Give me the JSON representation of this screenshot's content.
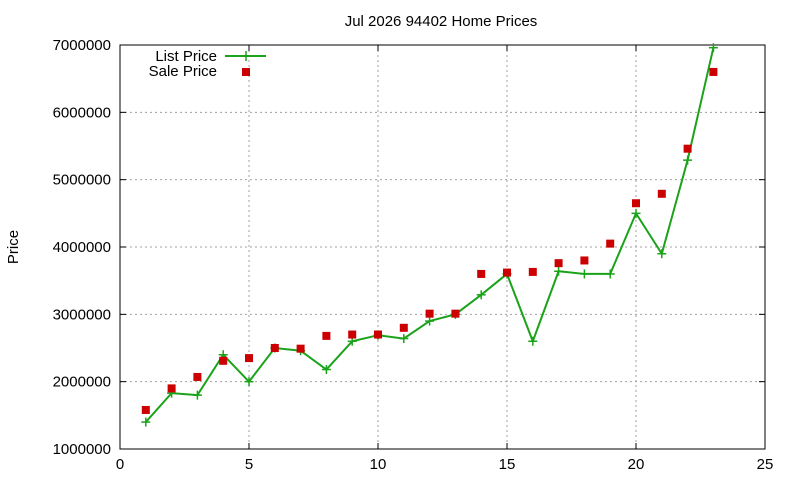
{
  "chart_data": {
    "type": "line",
    "title": "Jul 2026 94402 Home Prices",
    "xlabel": "",
    "ylabel": "Price",
    "xlim": [
      0,
      25
    ],
    "ylim": [
      1000000,
      7000000
    ],
    "xticks": [
      "0",
      "5",
      "10",
      "15",
      "20",
      "25"
    ],
    "yticks": [
      "1000000",
      "2000000",
      "3000000",
      "4000000",
      "5000000",
      "6000000",
      "7000000"
    ],
    "grid": true,
    "legend_position": "top-left",
    "series": [
      {
        "name": "List Price",
        "style": "line+cross",
        "color": "#1aa31a",
        "x": [
          1,
          2,
          3,
          4,
          5,
          6,
          7,
          8,
          9,
          10,
          11,
          12,
          13,
          14,
          15,
          16,
          17,
          18,
          19,
          20,
          21,
          22,
          23
        ],
        "y": [
          1400000,
          1830000,
          1800000,
          2400000,
          2000000,
          2500000,
          2460000,
          2180000,
          2600000,
          2690000,
          2640000,
          2900000,
          3000000,
          3290000,
          3600000,
          2600000,
          3640000,
          3600000,
          3600000,
          4500000,
          3900000,
          5290000,
          6960000
        ]
      },
      {
        "name": "Sale Price",
        "style": "square",
        "color": "#cc0000",
        "x": [
          1,
          2,
          3,
          4,
          5,
          6,
          7,
          8,
          9,
          10,
          11,
          12,
          13,
          14,
          15,
          16,
          17,
          18,
          19,
          20,
          21,
          22,
          23
        ],
        "y": [
          1580000,
          1900000,
          2070000,
          2310000,
          2350000,
          2500000,
          2490000,
          2680000,
          2700000,
          2700000,
          2800000,
          3010000,
          3010000,
          3600000,
          3620000,
          3630000,
          3760000,
          3800000,
          4050000,
          4650000,
          4790000,
          5460000,
          6600000
        ]
      }
    ]
  }
}
